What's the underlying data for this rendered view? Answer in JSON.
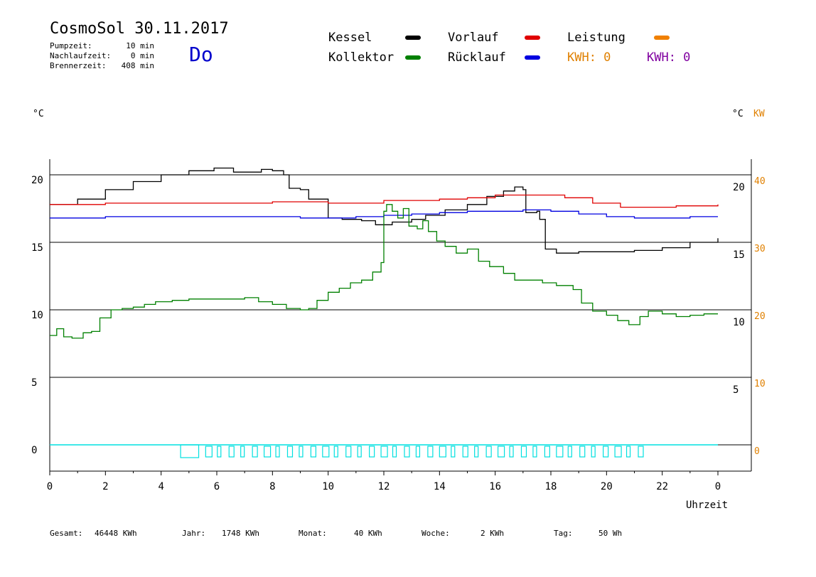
{
  "header": {
    "title": "CosmoSol 30.11.2017",
    "day": "Do",
    "stats": [
      {
        "label": "Pumpzeit:",
        "value": "10 min"
      },
      {
        "label": "Nachlaufzeit:",
        "value": "0 min"
      },
      {
        "label": "Brennerzeit:",
        "value": "408 min"
      }
    ]
  },
  "legend": {
    "items": [
      {
        "label": "Kessel",
        "color": "#000000"
      },
      {
        "label": "Vorlauf",
        "color": "#e00000"
      },
      {
        "label": "Leistung",
        "color": "#f08000"
      },
      {
        "label": "Kollektor",
        "color": "#008000"
      },
      {
        "label": "Rücklauf",
        "color": "#0000e0"
      }
    ],
    "kwh1": "KWH: 0",
    "kwh1_color": "#e08000",
    "kwh2": "KWH: 0",
    "kwh2_color": "#8000a0"
  },
  "footer": [
    {
      "label": "Gesamt:",
      "value": "46448 KWh"
    },
    {
      "label": "Jahr:",
      "value": "1748 KWh"
    },
    {
      "label": "Monat:",
      "value": "40 KWh"
    },
    {
      "label": "Woche:",
      "value": "2 KWh"
    },
    {
      "label": "Tag:",
      "value": "50 Wh"
    }
  ],
  "chart_data": {
    "type": "line",
    "xlabel": "Uhrzeit",
    "left_unit": "°C",
    "right_unit": "°C",
    "right_unit2": "KW",
    "xlim": [
      0,
      24
    ],
    "ylim": [
      -2,
      22
    ],
    "x_ticks": [
      "0",
      "2",
      "4",
      "6",
      "8",
      "10",
      "12",
      "14",
      "16",
      "18",
      "20",
      "22",
      "0"
    ],
    "y_ticks_left": [
      "20",
      "15",
      "10",
      "5",
      "0"
    ],
    "y_ticks_right": [
      "20",
      "15",
      "10",
      "5"
    ],
    "y_ticks_kw": [
      "40",
      "30",
      "20",
      "10",
      "0"
    ],
    "grid": "horizontal",
    "series": [
      {
        "name": "Kessel",
        "color": "#000000",
        "points": [
          [
            0,
            17.8
          ],
          [
            1,
            18.2
          ],
          [
            2,
            18.9
          ],
          [
            3,
            19.5
          ],
          [
            4,
            20.0
          ],
          [
            5,
            20.3
          ],
          [
            5.9,
            20.5
          ],
          [
            6.5,
            20.5
          ],
          [
            6.6,
            20.2
          ],
          [
            7.2,
            20.2
          ],
          [
            7.6,
            20.4
          ],
          [
            8.0,
            20.3
          ],
          [
            8.4,
            20.0
          ],
          [
            8.6,
            19.0
          ],
          [
            9.0,
            18.9
          ],
          [
            9.3,
            18.2
          ],
          [
            9.9,
            18.2
          ],
          [
            10.0,
            16.8
          ],
          [
            10.5,
            16.7
          ],
          [
            11.2,
            16.6
          ],
          [
            11.7,
            16.3
          ],
          [
            12.3,
            16.5
          ],
          [
            13.0,
            16.7
          ],
          [
            13.5,
            17.0
          ],
          [
            14.2,
            17.4
          ],
          [
            15.0,
            17.8
          ],
          [
            15.7,
            18.4
          ],
          [
            16.3,
            18.8
          ],
          [
            16.7,
            19.1
          ],
          [
            17.0,
            18.9
          ],
          [
            17.1,
            17.2
          ],
          [
            17.5,
            17.3
          ],
          [
            17.6,
            16.7
          ],
          [
            17.8,
            14.5
          ],
          [
            18.2,
            14.2
          ],
          [
            19,
            14.3
          ],
          [
            20,
            14.3
          ],
          [
            21,
            14.4
          ],
          [
            22,
            14.6
          ],
          [
            23,
            15.0
          ],
          [
            24,
            15.3
          ]
        ]
      },
      {
        "name": "Vorlauf",
        "color": "#e00000",
        "points": [
          [
            0,
            17.8
          ],
          [
            2,
            17.9
          ],
          [
            4,
            17.9
          ],
          [
            6,
            17.9
          ],
          [
            8,
            18.0
          ],
          [
            10,
            17.9
          ],
          [
            12,
            18.1
          ],
          [
            14,
            18.2
          ],
          [
            15,
            18.3
          ],
          [
            16,
            18.5
          ],
          [
            17.5,
            18.5
          ],
          [
            18.5,
            18.3
          ],
          [
            19.5,
            17.9
          ],
          [
            20.5,
            17.6
          ],
          [
            21.5,
            17.6
          ],
          [
            22.5,
            17.7
          ],
          [
            24,
            17.8
          ]
        ]
      },
      {
        "name": "Rücklauf",
        "color": "#0000e0",
        "points": [
          [
            0,
            16.8
          ],
          [
            2,
            16.9
          ],
          [
            4,
            16.9
          ],
          [
            6,
            16.9
          ],
          [
            8,
            16.9
          ],
          [
            9,
            16.8
          ],
          [
            10,
            16.8
          ],
          [
            11,
            16.9
          ],
          [
            12,
            17.0
          ],
          [
            13,
            17.1
          ],
          [
            14,
            17.2
          ],
          [
            15,
            17.3
          ],
          [
            16,
            17.3
          ],
          [
            17,
            17.4
          ],
          [
            18,
            17.3
          ],
          [
            19,
            17.1
          ],
          [
            20,
            16.9
          ],
          [
            21,
            16.8
          ],
          [
            22,
            16.8
          ],
          [
            23,
            16.9
          ],
          [
            24,
            16.9
          ]
        ]
      },
      {
        "name": "Kollektor",
        "color": "#008000",
        "points": [
          [
            0,
            8.1
          ],
          [
            0.25,
            8.6
          ],
          [
            0.5,
            8.0
          ],
          [
            0.8,
            7.9
          ],
          [
            1.2,
            8.3
          ],
          [
            1.5,
            8.4
          ],
          [
            1.8,
            9.4
          ],
          [
            2.2,
            10.0
          ],
          [
            2.6,
            10.1
          ],
          [
            3.0,
            10.2
          ],
          [
            3.4,
            10.4
          ],
          [
            3.8,
            10.6
          ],
          [
            4.4,
            10.7
          ],
          [
            5,
            10.8
          ],
          [
            6,
            10.8
          ],
          [
            7,
            10.9
          ],
          [
            7.5,
            10.6
          ],
          [
            8.0,
            10.4
          ],
          [
            8.5,
            10.1
          ],
          [
            9.0,
            10.0
          ],
          [
            9.3,
            10.1
          ],
          [
            9.6,
            10.7
          ],
          [
            10.0,
            11.3
          ],
          [
            10.4,
            11.6
          ],
          [
            10.8,
            12.0
          ],
          [
            11.2,
            12.2
          ],
          [
            11.6,
            12.8
          ],
          [
            11.9,
            13.5
          ],
          [
            12.0,
            17.3
          ],
          [
            12.1,
            17.8
          ],
          [
            12.3,
            17.3
          ],
          [
            12.5,
            16.8
          ],
          [
            12.7,
            17.5
          ],
          [
            12.9,
            16.2
          ],
          [
            13.2,
            16.0
          ],
          [
            13.4,
            16.6
          ],
          [
            13.6,
            15.8
          ],
          [
            13.9,
            15.1
          ],
          [
            14.2,
            14.7
          ],
          [
            14.6,
            14.2
          ],
          [
            15.0,
            14.5
          ],
          [
            15.4,
            13.6
          ],
          [
            15.8,
            13.2
          ],
          [
            16.3,
            12.7
          ],
          [
            16.7,
            12.2
          ],
          [
            17.2,
            12.2
          ],
          [
            17.7,
            12.0
          ],
          [
            18.2,
            11.8
          ],
          [
            18.8,
            11.5
          ],
          [
            19.1,
            10.5
          ],
          [
            19.5,
            9.9
          ],
          [
            20.0,
            9.6
          ],
          [
            20.4,
            9.2
          ],
          [
            20.8,
            8.9
          ],
          [
            21.2,
            9.5
          ],
          [
            21.5,
            9.9
          ],
          [
            22.0,
            9.7
          ],
          [
            22.5,
            9.5
          ],
          [
            23,
            9.6
          ],
          [
            23.5,
            9.7
          ],
          [
            24,
            9.7
          ]
        ]
      }
    ]
  }
}
